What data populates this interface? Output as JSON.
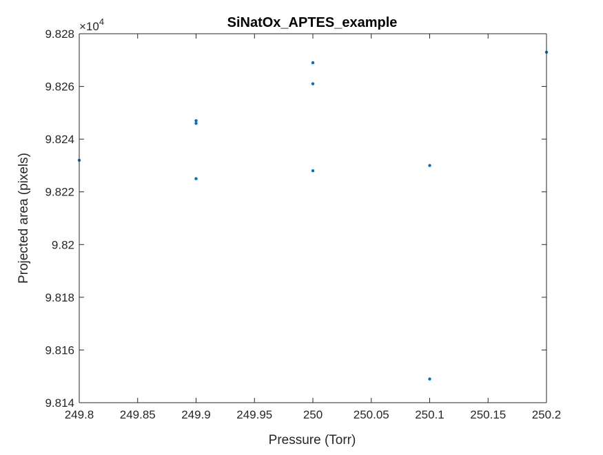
{
  "chart_data": {
    "type": "scatter",
    "title": "SiNatOx_APTES_example",
    "xlabel": "Pressure (Torr)",
    "ylabel": "Projected area (pixels)",
    "xlim": [
      249.8,
      250.2
    ],
    "ylim": [
      9.814,
      9.828
    ],
    "y_exponent_label": "×10",
    "y_exponent_power": "4",
    "x_ticks": [
      "249.8",
      "249.85",
      "249.9",
      "249.95",
      "250",
      "250.05",
      "250.1",
      "250.15",
      "250.2"
    ],
    "y_ticks": [
      "9.814",
      "9.816",
      "9.818",
      "9.82",
      "9.822",
      "9.824",
      "9.826",
      "9.828"
    ],
    "grid": false,
    "marker_color": "#0072BD",
    "series": [
      {
        "x": [
          249.8,
          249.9,
          249.9,
          249.9,
          250.0,
          250.0,
          250.0,
          250.1,
          250.1,
          250.2
        ],
        "y": [
          9.8232,
          9.8247,
          9.8246,
          9.8225,
          9.8269,
          9.8261,
          9.8228,
          9.823,
          9.8149,
          9.8273
        ]
      }
    ]
  }
}
